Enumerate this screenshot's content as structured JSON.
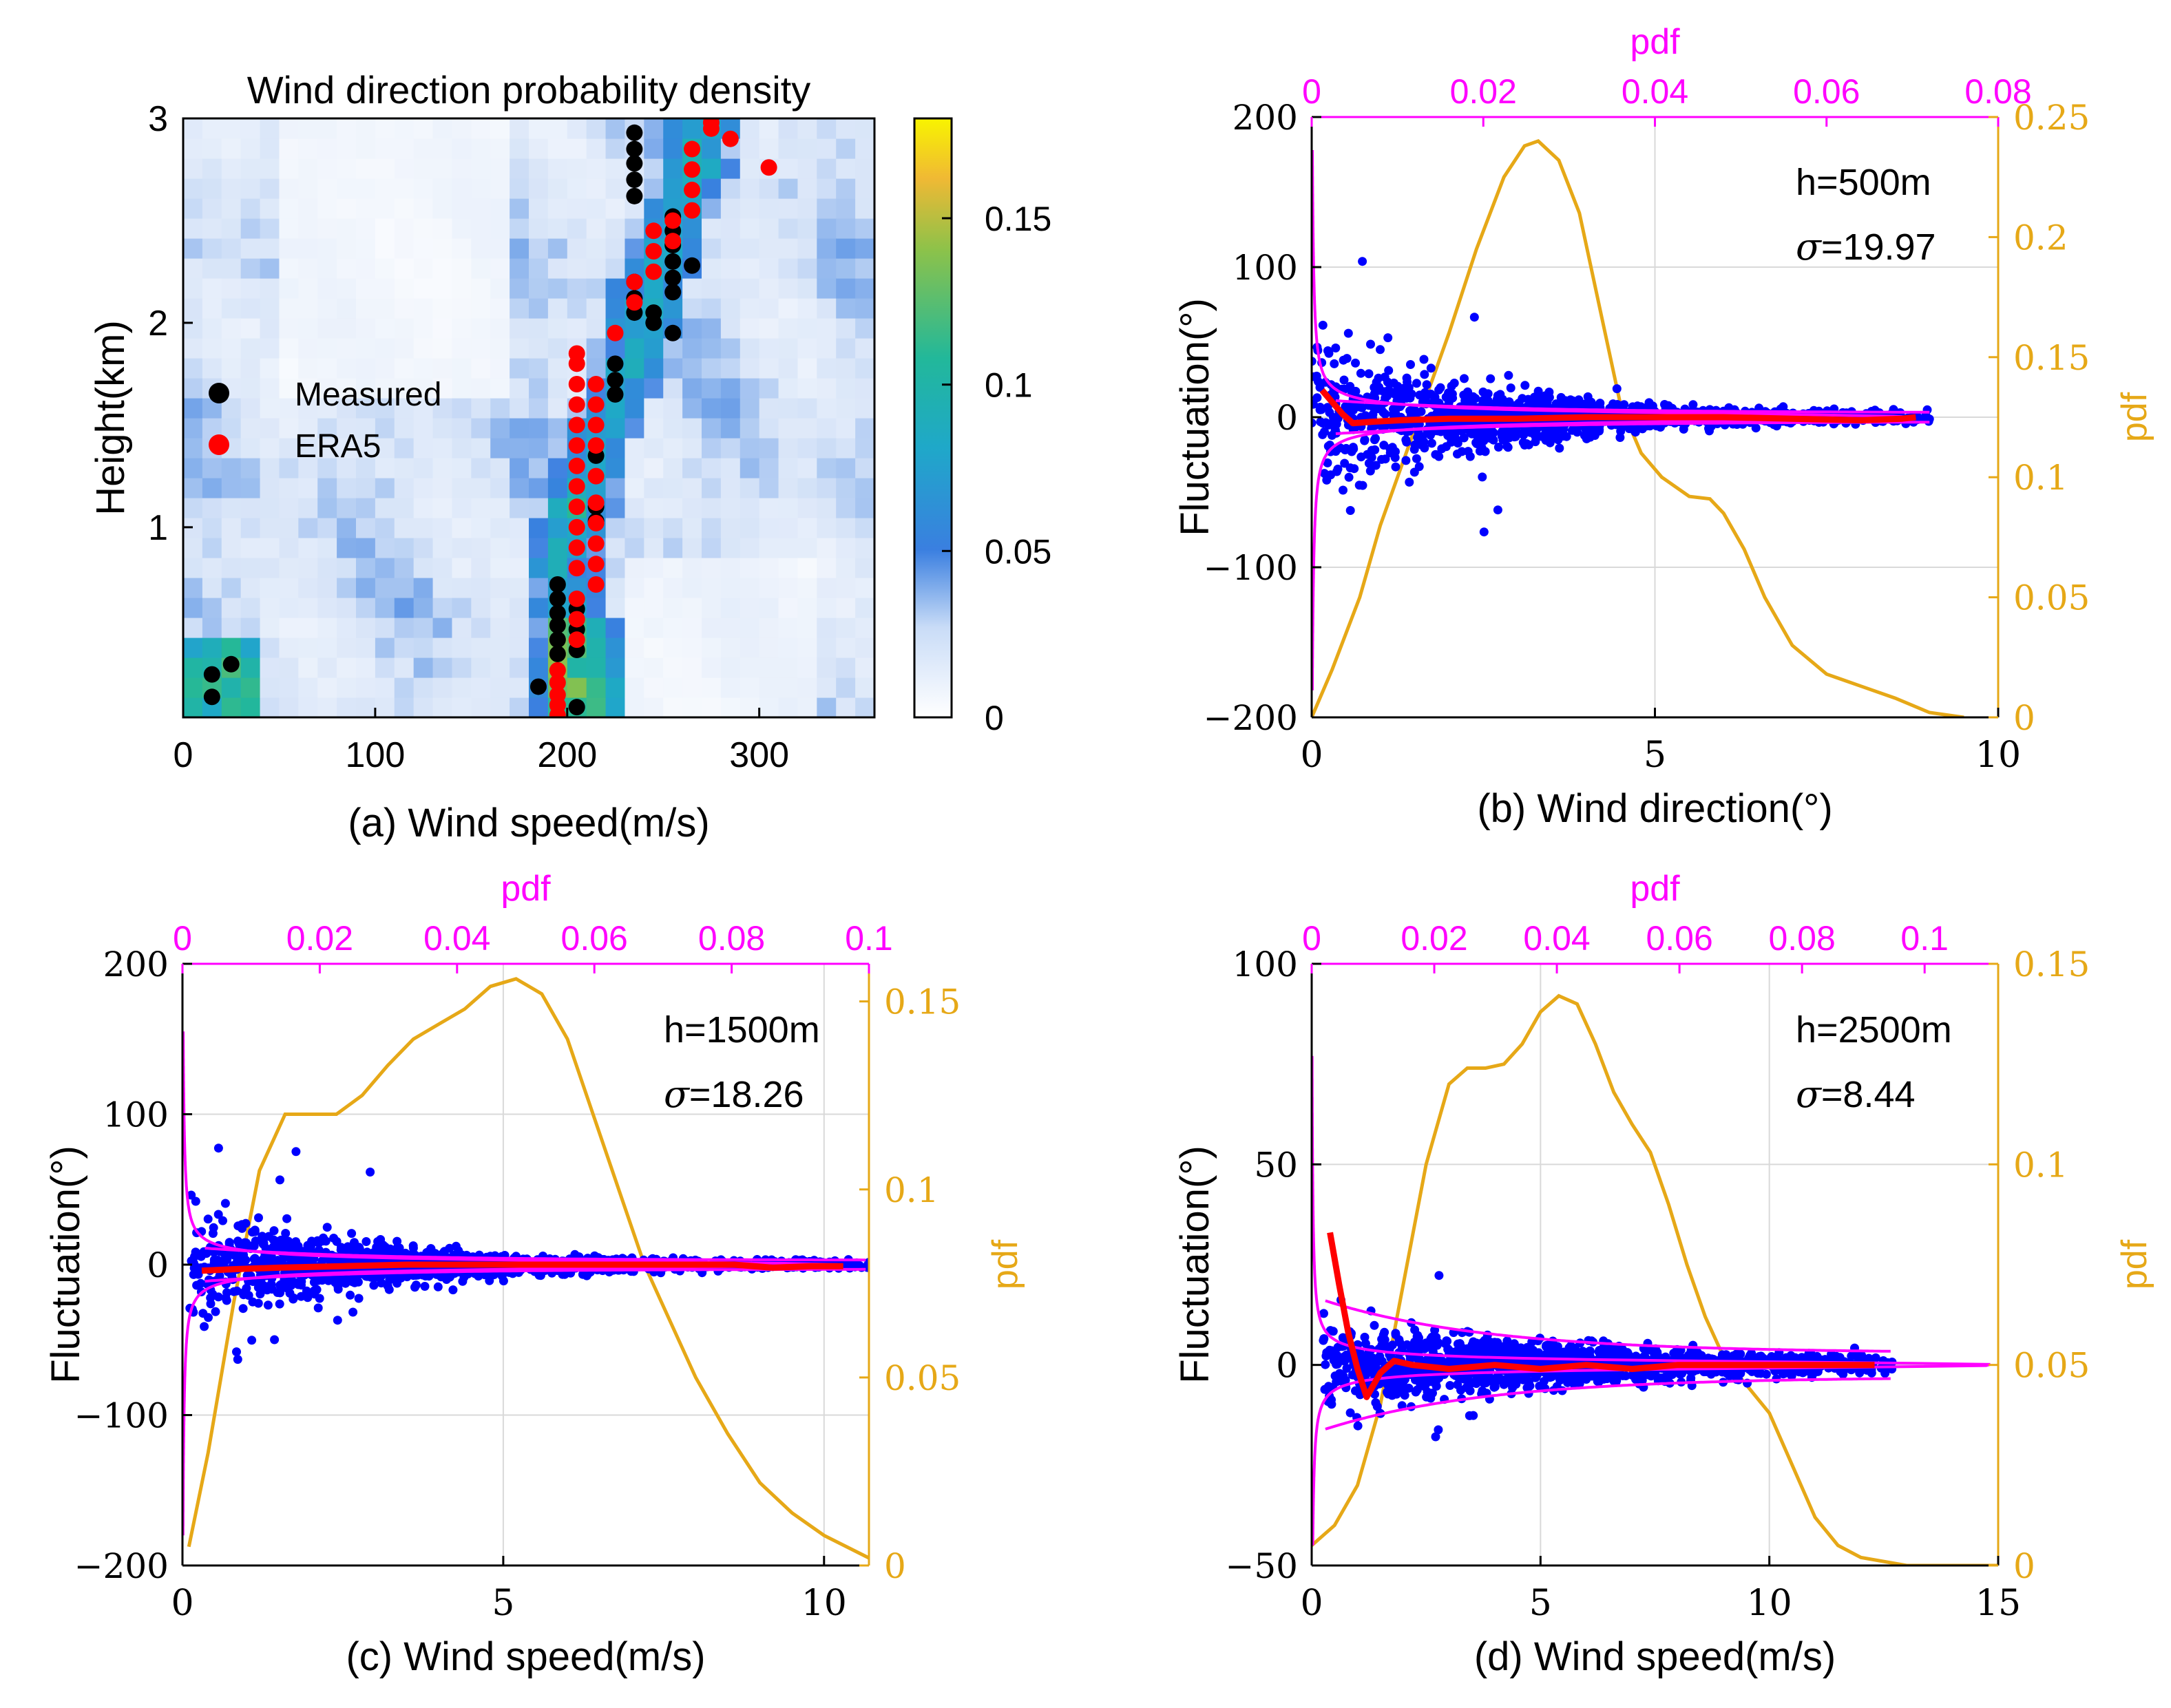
{
  "colors": {
    "measured": "#000000",
    "era5": "#ff0000",
    "scatter": "#0000ff",
    "mean_line": "#ff0000",
    "pdf_fluct": "#ff00ff",
    "pdf_speed": "#e6a817",
    "grid": "#d9d9d9",
    "heat_low": "#ffffff",
    "heat_mid": "#3a7fe0",
    "heat_mid2": "#1fb5a4",
    "heat_high": "#f4f000"
  },
  "chart_data": [
    {
      "id": "a",
      "type": "heatmap",
      "title": "Wind direction probability density",
      "xlabel": "(a) Wind speed(m/s)",
      "ylabel": "Height(km)",
      "xlim": [
        0,
        360
      ],
      "ylim": [
        0.07,
        3.0
      ],
      "xticks": [
        0,
        100,
        200,
        300
      ],
      "xtick_labels": [
        "0",
        "100",
        "200",
        "300"
      ],
      "yticks": [
        1,
        2,
        3
      ],
      "ytick_labels": [
        "1",
        "2",
        "3"
      ],
      "colorbar": {
        "min": 0,
        "max": 0.18,
        "ticks": [
          0,
          0.05,
          0.1,
          0.15
        ],
        "labels": [
          "0",
          "0.05",
          "0.1",
          "0.15"
        ]
      },
      "legend": {
        "position": "center-left",
        "entries": [
          "Measured",
          "ERA5"
        ]
      },
      "series": [
        {
          "name": "Measured",
          "points": [
            [
              15,
              0.28
            ],
            [
              25,
              0.33
            ],
            [
              15,
              0.17
            ],
            [
              185,
              0.22
            ],
            [
              195,
              0.72
            ],
            [
              195,
              0.65
            ],
            [
              195,
              0.58
            ],
            [
              195,
              0.52
            ],
            [
              195,
              0.45
            ],
            [
              195,
              0.38
            ],
            [
              205,
              0.12
            ],
            [
              205,
              0.4
            ],
            [
              205,
              0.5
            ],
            [
              205,
              0.6
            ],
            [
              215,
              1.35
            ],
            [
              215,
              1.1
            ],
            [
              215,
              1.03
            ],
            [
              225,
              1.65
            ],
            [
              225,
              1.72
            ],
            [
              225,
              1.8
            ],
            [
              235,
              2.05
            ],
            [
              235,
              2.12
            ],
            [
              235,
              2.2
            ],
            [
              235,
              2.62
            ],
            [
              235,
              2.7
            ],
            [
              235,
              2.78
            ],
            [
              235,
              2.85
            ],
            [
              235,
              2.93
            ],
            [
              245,
              2.0
            ],
            [
              245,
              2.05
            ],
            [
              255,
              1.95
            ],
            [
              255,
              2.15
            ],
            [
              255,
              2.22
            ],
            [
              255,
              2.3
            ],
            [
              255,
              2.38
            ],
            [
              255,
              2.45
            ],
            [
              255,
              2.52
            ],
            [
              265,
              2.28
            ]
          ]
        },
        {
          "name": "ERA5",
          "points": [
            [
              195,
              0.08
            ],
            [
              195,
              0.13
            ],
            [
              195,
              0.18
            ],
            [
              195,
              0.24
            ],
            [
              195,
              0.3
            ],
            [
              205,
              0.45
            ],
            [
              205,
              0.55
            ],
            [
              205,
              0.65
            ],
            [
              205,
              0.8
            ],
            [
              205,
              0.9
            ],
            [
              205,
              1.0
            ],
            [
              205,
              1.1
            ],
            [
              205,
              1.2
            ],
            [
              205,
              1.3
            ],
            [
              205,
              1.4
            ],
            [
              205,
              1.5
            ],
            [
              205,
              1.6
            ],
            [
              205,
              1.7
            ],
            [
              205,
              1.8
            ],
            [
              205,
              1.85
            ],
            [
              215,
              0.72
            ],
            [
              215,
              0.82
            ],
            [
              215,
              0.92
            ],
            [
              215,
              1.02
            ],
            [
              215,
              1.12
            ],
            [
              215,
              1.25
            ],
            [
              215,
              1.4
            ],
            [
              215,
              1.5
            ],
            [
              215,
              1.6
            ],
            [
              215,
              1.7
            ],
            [
              225,
              1.95
            ],
            [
              235,
              2.1
            ],
            [
              235,
              2.2
            ],
            [
              245,
              2.25
            ],
            [
              245,
              2.35
            ],
            [
              245,
              2.45
            ],
            [
              255,
              2.4
            ],
            [
              255,
              2.5
            ],
            [
              265,
              2.55
            ],
            [
              265,
              2.65
            ],
            [
              265,
              2.75
            ],
            [
              265,
              2.85
            ],
            [
              275,
              2.95
            ],
            [
              275,
              2.98
            ],
            [
              285,
              2.9
            ],
            [
              305,
              2.76
            ]
          ]
        }
      ]
    },
    {
      "id": "b",
      "type": "scatter",
      "annotation": {
        "h": "h=500m",
        "sigma_symbol": "σ",
        "sigma_value": "=19.97"
      },
      "xlabel": "(b) Wind direction(°)",
      "ylabel": "Fluctuation(°)",
      "xlim": [
        0,
        10
      ],
      "xticks": [
        0,
        5,
        10
      ],
      "xtick_labels": [
        "0",
        "5",
        "10"
      ],
      "ylim": [
        -200,
        200
      ],
      "yticks": [
        -200,
        -100,
        0,
        100,
        200
      ],
      "ytick_labels": [
        "−200",
        "−100",
        "0",
        "100",
        "200"
      ],
      "top_axis": {
        "label": "pdf",
        "lim": [
          0,
          0.08
        ],
        "ticks": [
          0,
          0.02,
          0.04,
          0.06,
          0.08
        ],
        "tick_labels": [
          "0",
          "0.02",
          "0.04",
          "0.06",
          "0.08"
        ]
      },
      "right_axis": {
        "label": "pdf",
        "lim": [
          0,
          0.25
        ],
        "ticks": [
          0,
          0.05,
          0.1,
          0.15,
          0.2,
          0.25
        ],
        "tick_labels": [
          "0",
          "0.05",
          "0.1",
          "0.15",
          "0.2",
          "0.25"
        ]
      },
      "scatter_params": {
        "xmin": 0.0,
        "xmax": 9.0,
        "xpeak": 3.0,
        "spread": 45,
        "decay": 0.42,
        "n": 1300,
        "seed": 11
      },
      "mean_line": [
        [
          0.15,
          18
        ],
        [
          0.3,
          10
        ],
        [
          0.45,
          2
        ],
        [
          0.6,
          -4
        ],
        [
          0.9,
          -3
        ],
        [
          1.3,
          -2
        ],
        [
          2,
          -1
        ],
        [
          3,
          -1
        ],
        [
          4,
          0
        ],
        [
          5,
          0
        ],
        [
          6,
          0
        ],
        [
          7,
          -1
        ],
        [
          8,
          -2
        ],
        [
          8.6,
          -1
        ],
        [
          8.8,
          0
        ]
      ],
      "speed_pdf": [
        [
          0,
          0
        ],
        [
          0.3,
          0.02
        ],
        [
          0.7,
          0.05
        ],
        [
          1.0,
          0.08
        ],
        [
          1.5,
          0.12
        ],
        [
          2.0,
          0.16
        ],
        [
          2.4,
          0.195
        ],
        [
          2.8,
          0.225
        ],
        [
          3.1,
          0.238
        ],
        [
          3.3,
          0.24
        ],
        [
          3.6,
          0.232
        ],
        [
          3.9,
          0.21
        ],
        [
          4.2,
          0.17
        ],
        [
          4.5,
          0.13
        ],
        [
          4.8,
          0.11
        ],
        [
          5.1,
          0.1
        ],
        [
          5.5,
          0.092
        ],
        [
          5.8,
          0.091
        ],
        [
          6.0,
          0.085
        ],
        [
          6.3,
          0.07
        ],
        [
          6.6,
          0.05
        ],
        [
          7.0,
          0.03
        ],
        [
          7.5,
          0.018
        ],
        [
          8.0,
          0.013
        ],
        [
          8.5,
          0.008
        ],
        [
          9.0,
          0.002
        ],
        [
          9.5,
          0.0
        ]
      ],
      "envelope": {
        "x0": 0.35,
        "a": 8,
        "b": 3.0,
        "k": 0.38
      },
      "fluct_pdf_peak": 0.07,
      "fluct_pdf_width": 3.5,
      "fluct_pdf_tail_ymin": -182,
      "fluct_pdf_tail_ymax": 178
    },
    {
      "id": "c",
      "type": "scatter",
      "annotation": {
        "h": "h=1500m",
        "sigma_symbol": "σ",
        "sigma_value": "=18.26"
      },
      "xlabel": "(c) Wind speed(m/s)",
      "ylabel": "Fluctuation(°)",
      "xlim": [
        0,
        10.7
      ],
      "xticks": [
        0,
        5,
        10
      ],
      "xtick_labels": [
        "0",
        "5",
        "10"
      ],
      "ylim": [
        -200,
        200
      ],
      "yticks": [
        -200,
        -100,
        0,
        100,
        200
      ],
      "ytick_labels": [
        "−200",
        "−100",
        "0",
        "100",
        "200"
      ],
      "top_axis": {
        "label": "pdf",
        "lim": [
          0,
          0.1
        ],
        "ticks": [
          0,
          0.02,
          0.04,
          0.06,
          0.08,
          0.1
        ],
        "tick_labels": [
          "0",
          "0.02",
          "0.04",
          "0.06",
          "0.08",
          "0.1"
        ]
      },
      "right_axis": {
        "label": "pdf",
        "lim": [
          0,
          0.16
        ],
        "ticks": [
          0,
          0.05,
          0.1,
          0.15
        ],
        "tick_labels": [
          "0",
          "0.05",
          "0.1",
          "0.15"
        ]
      },
      "scatter_params": {
        "xmin": 0.1,
        "xmax": 10.7,
        "xpeak": 3.5,
        "spread": 38,
        "decay": 0.42,
        "n": 1500,
        "seed": 23
      },
      "mean_line": [
        [
          0.3,
          -4
        ],
        [
          0.8,
          -3
        ],
        [
          1.5,
          -2
        ],
        [
          2.5,
          -1
        ],
        [
          3.5,
          0
        ],
        [
          5,
          0
        ],
        [
          6,
          0
        ],
        [
          7,
          0
        ],
        [
          8,
          0
        ],
        [
          8.6,
          0
        ],
        [
          9.2,
          -2
        ],
        [
          9.8,
          -1
        ],
        [
          10.3,
          -1
        ]
      ],
      "speed_pdf": [
        [
          0.1,
          0.005
        ],
        [
          0.4,
          0.03
        ],
        [
          0.8,
          0.07
        ],
        [
          1.2,
          0.105
        ],
        [
          1.6,
          0.12
        ],
        [
          2.0,
          0.12
        ],
        [
          2.4,
          0.12
        ],
        [
          2.8,
          0.125
        ],
        [
          3.2,
          0.133
        ],
        [
          3.6,
          0.14
        ],
        [
          4.0,
          0.144
        ],
        [
          4.4,
          0.148
        ],
        [
          4.8,
          0.154
        ],
        [
          5.2,
          0.156
        ],
        [
          5.6,
          0.152
        ],
        [
          6.0,
          0.14
        ],
        [
          6.4,
          0.12
        ],
        [
          6.8,
          0.1
        ],
        [
          7.2,
          0.08
        ],
        [
          7.6,
          0.065
        ],
        [
          8.0,
          0.05
        ],
        [
          8.5,
          0.035
        ],
        [
          9.0,
          0.022
        ],
        [
          9.5,
          0.014
        ],
        [
          10.0,
          0.008
        ],
        [
          10.7,
          0.002
        ]
      ],
      "envelope": {
        "x0": 0.35,
        "a": 8,
        "b": 3.0,
        "k": 0.4
      },
      "fluct_pdf_peak": 0.095,
      "fluct_pdf_width": 3.0,
      "fluct_pdf_tail_ymin": -180,
      "fluct_pdf_tail_ymax": 155
    },
    {
      "id": "d",
      "type": "scatter",
      "annotation": {
        "h": "h=2500m",
        "sigma_symbol": "σ",
        "sigma_value": "=8.44"
      },
      "xlabel": "(d) Wind speed(m/s)",
      "ylabel": "Fluctuation(°)",
      "xlim": [
        0,
        15
      ],
      "xticks": [
        0,
        5,
        10,
        15
      ],
      "xtick_labels": [
        "0",
        "5",
        "10",
        "15"
      ],
      "ylim": [
        -50,
        100
      ],
      "yticks": [
        -50,
        0,
        50,
        100
      ],
      "ytick_labels": [
        "−50",
        "0",
        "50",
        "100"
      ],
      "top_axis": {
        "label": "pdf",
        "lim": [
          0,
          0.112
        ],
        "ticks": [
          0,
          0.02,
          0.04,
          0.06,
          0.08,
          0.1
        ],
        "tick_labels": [
          "0",
          "0.02",
          "0.04",
          "0.06",
          "0.08",
          "0.1"
        ]
      },
      "right_axis": {
        "label": "pdf",
        "lim": [
          0,
          0.15
        ],
        "ticks": [
          0,
          0.05,
          0.1,
          0.15
        ],
        "tick_labels": [
          "0",
          "0.05",
          "0.1",
          "0.15"
        ]
      },
      "scatter_params": {
        "xmin": 0.2,
        "xmax": 12.7,
        "xpeak": 5.0,
        "spread": 10,
        "decay": 0.16,
        "n": 1500,
        "seed": 37
      },
      "mean_line": [
        [
          0.4,
          33
        ],
        [
          0.6,
          20
        ],
        [
          0.8,
          8
        ],
        [
          1.0,
          -1
        ],
        [
          1.2,
          -8
        ],
        [
          1.5,
          -2
        ],
        [
          1.8,
          1
        ],
        [
          2.2,
          0
        ],
        [
          3,
          -1
        ],
        [
          4,
          0
        ],
        [
          5,
          -1
        ],
        [
          6,
          0
        ],
        [
          7,
          -1
        ],
        [
          8,
          0
        ],
        [
          9,
          0
        ],
        [
          10,
          0
        ],
        [
          11,
          0
        ],
        [
          12,
          0
        ],
        [
          12.3,
          0
        ]
      ],
      "speed_pdf": [
        [
          0.0,
          0.005
        ],
        [
          0.5,
          0.01
        ],
        [
          1.0,
          0.02
        ],
        [
          1.5,
          0.04
        ],
        [
          2.0,
          0.07
        ],
        [
          2.5,
          0.1
        ],
        [
          3.0,
          0.12
        ],
        [
          3.4,
          0.124
        ],
        [
          3.8,
          0.124
        ],
        [
          4.2,
          0.125
        ],
        [
          4.6,
          0.13
        ],
        [
          5.0,
          0.138
        ],
        [
          5.4,
          0.142
        ],
        [
          5.8,
          0.14
        ],
        [
          6.2,
          0.13
        ],
        [
          6.6,
          0.118
        ],
        [
          7.0,
          0.11
        ],
        [
          7.4,
          0.103
        ],
        [
          7.8,
          0.09
        ],
        [
          8.2,
          0.075
        ],
        [
          8.6,
          0.062
        ],
        [
          9.0,
          0.052
        ],
        [
          9.5,
          0.045
        ],
        [
          10.0,
          0.038
        ],
        [
          10.5,
          0.025
        ],
        [
          11.0,
          0.012
        ],
        [
          11.5,
          0.005
        ],
        [
          12.0,
          0.002
        ],
        [
          13.0,
          0.0
        ],
        [
          15,
          0.0
        ]
      ],
      "envelope": {
        "x0": 0.3,
        "a": 13,
        "b": 3.0,
        "k": 0.28
      },
      "fluct_pdf_peak": 0.112,
      "fluct_pdf_width": 1.1,
      "fluct_pdf_tail_ymin": -45,
      "fluct_pdf_tail_ymax": 77
    }
  ]
}
